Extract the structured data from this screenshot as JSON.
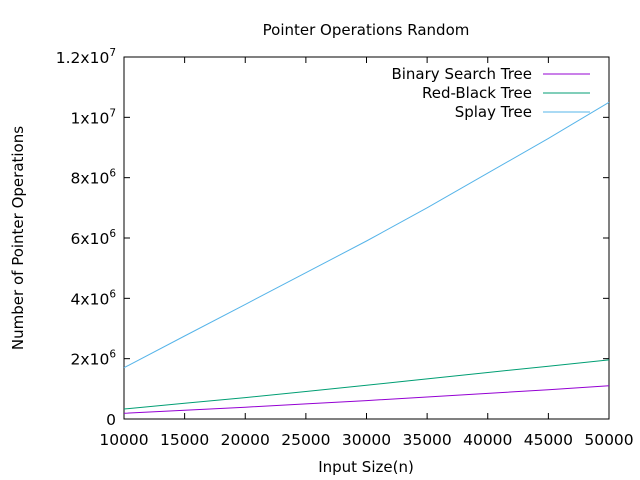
{
  "chart_data": {
    "type": "line",
    "title": "Pointer Operations Random",
    "xlabel": "Input Size(n)",
    "ylabel": "Number of Pointer Operations",
    "xlim": [
      10000,
      50000
    ],
    "ylim": [
      0,
      12000000
    ],
    "x_ticks": [
      10000,
      15000,
      20000,
      25000,
      30000,
      35000,
      40000,
      45000,
      50000
    ],
    "x_tick_labels": [
      "10000",
      "15000",
      "20000",
      "25000",
      "30000",
      "35000",
      "40000",
      "45000",
      "50000"
    ],
    "y_ticks": [
      {
        "value": 0,
        "base": "0",
        "exp": ""
      },
      {
        "value": 2000000,
        "base": "2x10",
        "exp": "6"
      },
      {
        "value": 4000000,
        "base": "4x10",
        "exp": "6"
      },
      {
        "value": 6000000,
        "base": "6x10",
        "exp": "6"
      },
      {
        "value": 8000000,
        "base": "8x10",
        "exp": "6"
      },
      {
        "value": 10000000,
        "base": "1x10",
        "exp": "7"
      },
      {
        "value": 12000000,
        "base": "1.2x10",
        "exp": "7"
      }
    ],
    "legend_position": "top-right",
    "grid": false,
    "x": [
      10000,
      15000,
      20000,
      25000,
      30000,
      35000,
      40000,
      45000,
      50000
    ],
    "series": [
      {
        "name": "Binary Search Tree",
        "color": "#9400d3",
        "values": [
          190000,
          290000,
          390000,
          500000,
          610000,
          730000,
          850000,
          970000,
          1100000
        ]
      },
      {
        "name": "Red-Black Tree",
        "color": "#009e73",
        "values": [
          330000,
          520000,
          710000,
          910000,
          1120000,
          1330000,
          1540000,
          1750000,
          1960000
        ]
      },
      {
        "name": "Splay Tree",
        "color": "#56b4e9",
        "values": [
          1700000,
          2750000,
          3800000,
          4850000,
          5900000,
          7000000,
          8150000,
          9300000,
          10500000
        ]
      }
    ]
  }
}
